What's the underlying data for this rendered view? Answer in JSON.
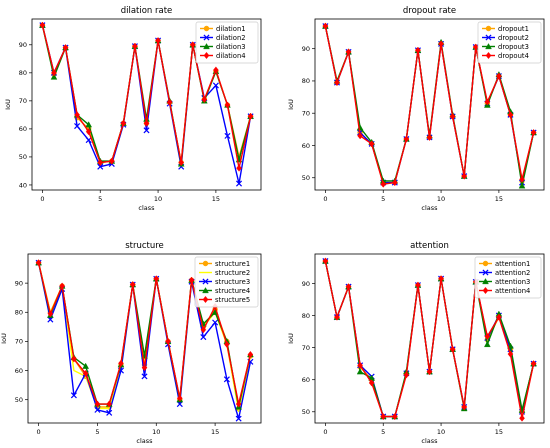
{
  "chart_data": [
    {
      "type": "line",
      "title": "dilation rate",
      "xlabel": "class",
      "ylabel": "IoU",
      "x": [
        0,
        1,
        2,
        3,
        4,
        5,
        6,
        7,
        8,
        9,
        10,
        11,
        12,
        13,
        14,
        15,
        16,
        17,
        18
      ],
      "xticks": [
        0,
        5,
        10,
        15
      ],
      "yticks": [
        40,
        50,
        60,
        70,
        80,
        90
      ],
      "xlim": [
        -0.9,
        18.9
      ],
      "ylim": [
        38.2,
        99.2
      ],
      "legend_position": "top-right",
      "series": [
        {
          "name": "dilation1",
          "color": "#ffa500",
          "marker": "circle",
          "values": [
            97,
            79.5,
            89,
            64,
            60,
            48,
            48.5,
            62,
            89.5,
            62,
            91.5,
            69.5,
            48,
            90,
            70.5,
            80.5,
            68.5,
            50,
            64.5
          ]
        },
        {
          "name": "dilation2",
          "color": "#0000ff",
          "marker": "x",
          "values": [
            97,
            80,
            89,
            61,
            56,
            46.5,
            47.5,
            61.5,
            89.5,
            59.5,
            91.5,
            69,
            46.5,
            90,
            71,
            75.5,
            57.5,
            40.5,
            64.5
          ]
        },
        {
          "name": "dilation3",
          "color": "#008000",
          "marker": "triangle",
          "values": [
            97,
            78.5,
            89,
            65,
            61.5,
            48.5,
            48.5,
            62,
            89.5,
            63.5,
            91.5,
            70,
            47.5,
            90,
            70,
            80.5,
            68.5,
            49,
            64.5
          ]
        },
        {
          "name": "dilation4",
          "color": "#ff0000",
          "marker": "diamond",
          "values": [
            97,
            80,
            89,
            65,
            59,
            48,
            48.5,
            62,
            89.5,
            62,
            91.5,
            69.5,
            48,
            90,
            70.5,
            81,
            68.5,
            46,
            64.5
          ]
        }
      ]
    },
    {
      "type": "line",
      "title": "dropout rate",
      "xlabel": "class",
      "ylabel": "IoU",
      "x": [
        0,
        1,
        2,
        3,
        4,
        5,
        6,
        7,
        8,
        9,
        10,
        11,
        12,
        13,
        14,
        15,
        16,
        17,
        18
      ],
      "xticks": [
        0,
        5,
        10,
        15
      ],
      "yticks": [
        50,
        60,
        70,
        80,
        90
      ],
      "xlim": [
        -0.9,
        18.9
      ],
      "ylim": [
        46.2,
        99.2
      ],
      "legend_position": "top-right",
      "series": [
        {
          "name": "dropout1",
          "color": "#ffa500",
          "marker": "circle",
          "values": [
            97,
            79.5,
            89,
            64,
            60.5,
            48.5,
            48.5,
            62,
            89.5,
            62.5,
            91.5,
            69,
            50.5,
            90.5,
            73,
            81.5,
            69.5,
            49,
            64
          ]
        },
        {
          "name": "dropout2",
          "color": "#0000ff",
          "marker": "x",
          "values": [
            97,
            79.5,
            89,
            64,
            60.5,
            48.5,
            48.5,
            62,
            89.5,
            62.5,
            91.5,
            69,
            50.5,
            90.5,
            73,
            81.5,
            69.5,
            48.5,
            64
          ]
        },
        {
          "name": "dropout3",
          "color": "#008000",
          "marker": "triangle",
          "values": [
            97,
            80,
            89,
            65.5,
            61,
            49,
            49,
            62,
            89.5,
            63,
            92,
            69.5,
            50.5,
            90.5,
            72.5,
            82,
            70.5,
            47.5,
            64
          ]
        },
        {
          "name": "dropout4",
          "color": "#ff0000",
          "marker": "diamond",
          "values": [
            97,
            79.5,
            89,
            63,
            60.5,
            48,
            48.5,
            62,
            89.5,
            62.5,
            91.5,
            69,
            50.5,
            90.5,
            73.5,
            81.5,
            69.5,
            49.5,
            64
          ]
        }
      ]
    },
    {
      "type": "line",
      "title": "structure",
      "xlabel": "class",
      "ylabel": "IoU",
      "x": [
        0,
        1,
        2,
        3,
        4,
        5,
        6,
        7,
        8,
        9,
        10,
        11,
        12,
        13,
        14,
        15,
        16,
        17,
        18
      ],
      "xticks": [
        0,
        5,
        10,
        15
      ],
      "yticks": [
        50,
        60,
        70,
        80,
        90
      ],
      "xlim": [
        -0.9,
        18.9
      ],
      "ylim": [
        42,
        100
      ],
      "legend_position": "top-right",
      "series": [
        {
          "name": "structure1",
          "color": "#ffa500",
          "marker": "circle",
          "values": [
            97,
            80,
            89,
            64,
            58,
            47.5,
            47.5,
            62,
            89.5,
            62,
            91.5,
            70,
            50,
            91,
            75,
            81,
            70,
            47,
            65
          ]
        },
        {
          "name": "structure2",
          "color": "#ffff00",
          "marker": "none",
          "values": [
            97,
            80,
            89,
            60,
            58,
            47,
            47,
            62,
            89.5,
            62,
            91.5,
            70,
            50,
            91,
            75,
            80,
            69,
            46,
            65
          ]
        },
        {
          "name": "structure3",
          "color": "#0000ff",
          "marker": "x",
          "values": [
            97,
            77.5,
            88,
            51.5,
            59,
            46.5,
            45.5,
            60,
            89.5,
            58,
            91.5,
            69,
            48.5,
            90.5,
            71.5,
            76.5,
            57,
            43.5,
            63
          ]
        },
        {
          "name": "structure4",
          "color": "#008000",
          "marker": "triangle",
          "values": [
            97,
            79,
            89,
            64.5,
            61.5,
            48.5,
            48.5,
            62,
            89.5,
            65,
            91.5,
            70,
            50,
            91,
            76,
            80,
            70,
            47.5,
            65.5
          ]
        },
        {
          "name": "structure5",
          "color": "#ff0000",
          "marker": "diamond",
          "values": [
            97,
            79.5,
            89,
            64,
            59,
            48.5,
            48.5,
            62.5,
            89.5,
            61,
            91.5,
            70,
            50.5,
            91,
            74,
            82,
            69,
            48.5,
            65.5
          ]
        }
      ]
    },
    {
      "type": "line",
      "title": "attention",
      "xlabel": "class",
      "ylabel": "IoU",
      "x": [
        0,
        1,
        2,
        3,
        4,
        5,
        6,
        7,
        8,
        9,
        10,
        11,
        12,
        13,
        14,
        15,
        16,
        17,
        18
      ],
      "xticks": [
        0,
        5,
        10,
        15
      ],
      "yticks": [
        50,
        60,
        70,
        80,
        90
      ],
      "xlim": [
        -0.9,
        18.9
      ],
      "ylim": [
        46.5,
        99.2
      ],
      "legend_position": "top-right",
      "series": [
        {
          "name": "attention1",
          "color": "#ffa500",
          "marker": "circle",
          "values": [
            97,
            79.5,
            89,
            64,
            60,
            48.5,
            48.5,
            62,
            89.5,
            62.5,
            91.5,
            69.5,
            51.5,
            90.5,
            72.5,
            79.5,
            69.5,
            50,
            65
          ]
        },
        {
          "name": "attention2",
          "color": "#0000ff",
          "marker": "x",
          "values": [
            97,
            79.5,
            89,
            64.5,
            61,
            48.5,
            48.5,
            62,
            89.5,
            62.5,
            91.5,
            69.5,
            51.5,
            90.5,
            73,
            80,
            69.5,
            50,
            65
          ]
        },
        {
          "name": "attention3",
          "color": "#008000",
          "marker": "triangle",
          "values": [
            97,
            79.5,
            89,
            62.5,
            60.5,
            48.5,
            48.5,
            62.5,
            89.5,
            62.5,
            91.5,
            69.5,
            51,
            90.5,
            71,
            80.5,
            70.5,
            50.5,
            65
          ]
        },
        {
          "name": "attention4",
          "color": "#ff0000",
          "marker": "diamond",
          "values": [
            97,
            79.5,
            89,
            64.5,
            59,
            48.5,
            48.5,
            61.5,
            89.5,
            62.5,
            91.5,
            69.5,
            51.5,
            90.5,
            73.5,
            79.5,
            68,
            48,
            65
          ]
        }
      ]
    }
  ]
}
